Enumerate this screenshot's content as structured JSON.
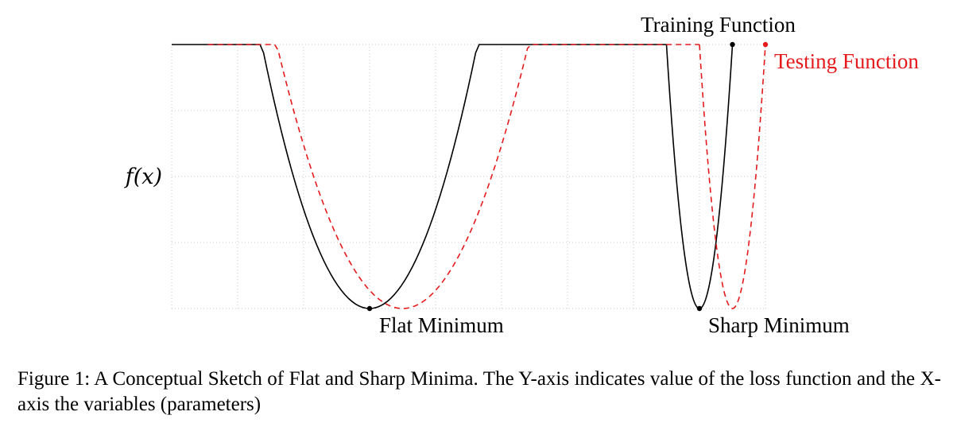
{
  "chart_data": {
    "type": "line",
    "title": "",
    "xlabel": "",
    "ylabel": "f(x)",
    "xlim": [
      0,
      9
    ],
    "ylim": [
      0,
      4
    ],
    "grid": true,
    "series": [
      {
        "name": "Training Function",
        "style": "solid",
        "color": "#000000",
        "segments": [
          {
            "vertex": [
              3,
              0
            ],
            "a": 1.5,
            "domain": [
              0,
              7.5
            ]
          },
          {
            "vertex": [
              8,
              0
            ],
            "a": 16,
            "domain": [
              7.5,
              8.5
            ]
          }
        ],
        "points": [
          [
            3,
            0
          ],
          [
            8,
            0
          ],
          [
            8.5,
            4
          ]
        ]
      },
      {
        "name": "Testing Function",
        "style": "dashed",
        "color": "#e41a1c",
        "segments": [
          {
            "vertex": [
              3.5,
              0
            ],
            "a": 1.1,
            "domain": [
              0.55,
              8
            ]
          },
          {
            "vertex": [
              8.5,
              0
            ],
            "a": 16,
            "domain": [
              8,
              9
            ]
          }
        ],
        "points": [
          [
            9,
            4
          ]
        ]
      }
    ],
    "annotations": [
      {
        "text": "Flat Minimum",
        "x": 3,
        "y": 0,
        "anchor": "below"
      },
      {
        "text": "Sharp Minimum",
        "x": 8,
        "y": 0,
        "anchor": "below"
      },
      {
        "text": "Training Function",
        "x": 7.5,
        "y": 4,
        "anchor": "above"
      },
      {
        "text": "Testing Function",
        "x": 9,
        "y": 4,
        "anchor": "right"
      }
    ]
  },
  "caption": "Figure 1: A Conceptual Sketch of Flat and Sharp Minima. The Y-axis indicates value of the loss function and the X-axis the variables (parameters)",
  "colors": {
    "training": "#000000",
    "testing": "#e41a1c",
    "grid": "#c8c8c8"
  }
}
